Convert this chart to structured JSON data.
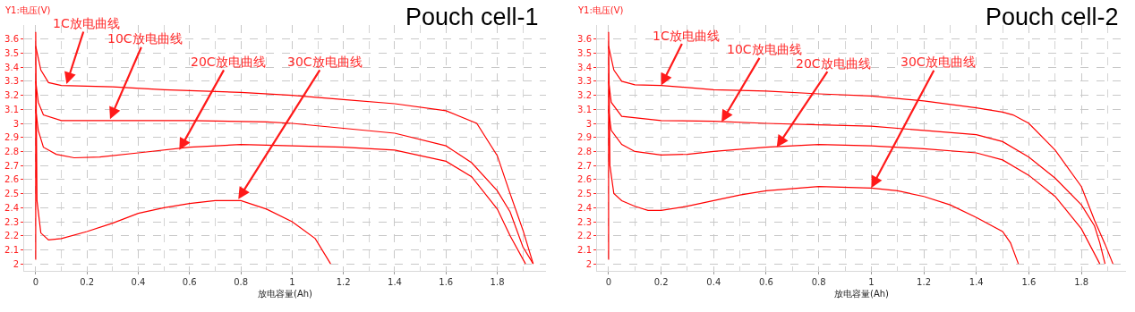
{
  "chart_data": [
    {
      "type": "line",
      "title": "Pouch cell-1",
      "xlabel": "放电容量(Ah)",
      "ylabel": "Y1:电压(V)",
      "xlim": [
        -0.045,
        1.99
      ],
      "ylim": [
        1.95,
        3.7
      ],
      "xticks": [
        0,
        0.2,
        0.4,
        0.6,
        0.8,
        1,
        1.2,
        1.4,
        1.6,
        1.8
      ],
      "yticks": [
        2,
        2.1,
        2.2,
        2.3,
        2.4,
        2.5,
        2.6,
        2.7,
        2.8,
        2.9,
        3,
        3.1,
        3.2,
        3.3,
        3.4,
        3.5,
        3.6
      ],
      "grid": true,
      "line_style": "solid",
      "marker": "none",
      "series": [
        {
          "color": "#ff0000",
          "x": [
            0,
            0.02,
            0.05,
            0.1,
            0.3,
            0.5,
            0.8,
            1.0,
            1.2,
            1.4,
            1.6,
            1.72,
            1.8,
            1.85,
            1.9,
            1.94
          ],
          "values": [
            3.55,
            3.38,
            3.29,
            3.27,
            3.26,
            3.24,
            3.22,
            3.2,
            3.17,
            3.14,
            3.09,
            3.0,
            2.77,
            2.5,
            2.24,
            2.0
          ]
        },
        {
          "color": "#ff0000",
          "x": [
            0,
            0.01,
            0.03,
            0.1,
            0.3,
            0.6,
            0.9,
            1.0,
            1.4,
            1.6,
            1.7,
            1.8,
            1.85,
            1.9,
            1.94
          ],
          "values": [
            3.3,
            3.15,
            3.06,
            3.02,
            3.02,
            3.02,
            3.01,
            3.0,
            2.93,
            2.84,
            2.72,
            2.52,
            2.37,
            2.12,
            2.0
          ]
        },
        {
          "color": "#ff0000",
          "x": [
            0,
            0.01,
            0.03,
            0.08,
            0.15,
            0.25,
            0.4,
            0.6,
            0.8,
            1.0,
            1.2,
            1.4,
            1.6,
            1.7,
            1.8,
            1.85,
            1.91
          ],
          "values": [
            3.1,
            2.95,
            2.83,
            2.78,
            2.755,
            2.76,
            2.79,
            2.83,
            2.85,
            2.84,
            2.83,
            2.81,
            2.73,
            2.62,
            2.39,
            2.2,
            2.0
          ]
        },
        {
          "color": "#ff0000",
          "x": [
            0,
            0,
            0.005,
            0.02,
            0.05,
            0.1,
            0.2,
            0.3,
            0.4,
            0.5,
            0.6,
            0.7,
            0.8,
            0.9,
            1.0,
            1.09,
            1.15
          ],
          "values": [
            2.03,
            3.65,
            2.45,
            2.22,
            2.17,
            2.18,
            2.23,
            2.29,
            2.36,
            2.4,
            2.43,
            2.45,
            2.45,
            2.39,
            2.3,
            2.18,
            2.0
          ]
        }
      ],
      "annotations": [
        {
          "text": "1C放电曲线",
          "x": 0.12,
          "y": 3.28
        },
        {
          "text": "10C放电曲线",
          "x": 0.29,
          "y": 3.03
        },
        {
          "text": "20C放电曲线",
          "x": 0.56,
          "y": 2.81
        },
        {
          "text": "30C放电曲线",
          "x": 0.79,
          "y": 2.46
        }
      ]
    },
    {
      "type": "line",
      "title": "Pouch cell-2",
      "xlabel": "放电容量(Ah)",
      "ylabel": "Y1:电压(V)",
      "xlim": [
        -0.044,
        1.97
      ],
      "ylim": [
        1.95,
        3.7
      ],
      "xticks": [
        0,
        0.2,
        0.4,
        0.6,
        0.8,
        1,
        1.2,
        1.4,
        1.6,
        1.8
      ],
      "yticks": [
        2,
        2.1,
        2.2,
        2.3,
        2.4,
        2.5,
        2.6,
        2.7,
        2.8,
        2.9,
        3,
        3.1,
        3.2,
        3.3,
        3.4,
        3.5,
        3.6
      ],
      "grid": true,
      "line_style": "solid",
      "marker": "none",
      "series": [
        {
          "color": "#ff0000",
          "x": [
            0,
            0.02,
            0.05,
            0.1,
            0.2,
            0.4,
            0.6,
            0.8,
            1.0,
            1.2,
            1.4,
            1.5,
            1.54,
            1.6,
            1.7,
            1.8,
            1.85,
            1.89,
            1.92
          ],
          "values": [
            3.55,
            3.38,
            3.3,
            3.275,
            3.27,
            3.24,
            3.23,
            3.21,
            3.195,
            3.16,
            3.11,
            3.08,
            3.06,
            3.0,
            2.81,
            2.55,
            2.31,
            2.14,
            2.0
          ]
        },
        {
          "color": "#ff0000",
          "x": [
            0,
            0.01,
            0.05,
            0.2,
            0.4,
            0.6,
            0.8,
            1.0,
            1.2,
            1.4,
            1.5,
            1.6,
            1.7,
            1.8,
            1.85,
            1.87,
            1.89
          ],
          "values": [
            3.3,
            3.15,
            3.05,
            3.02,
            3.015,
            3.0,
            2.99,
            2.98,
            2.95,
            2.92,
            2.87,
            2.76,
            2.61,
            2.42,
            2.27,
            2.15,
            2.0
          ]
        },
        {
          "color": "#ff0000",
          "x": [
            0,
            0.01,
            0.05,
            0.1,
            0.2,
            0.3,
            0.4,
            0.6,
            0.8,
            1.0,
            1.2,
            1.4,
            1.5,
            1.6,
            1.7,
            1.8,
            1.87
          ],
          "values": [
            3.1,
            2.95,
            2.85,
            2.8,
            2.775,
            2.78,
            2.8,
            2.83,
            2.85,
            2.84,
            2.82,
            2.79,
            2.74,
            2.63,
            2.48,
            2.25,
            2.0
          ]
        },
        {
          "color": "#ff0000",
          "x": [
            0,
            0,
            0.005,
            0.02,
            0.05,
            0.1,
            0.15,
            0.2,
            0.3,
            0.4,
            0.5,
            0.6,
            0.8,
            1.0,
            1.1,
            1.2,
            1.3,
            1.4,
            1.5,
            1.53,
            1.56
          ],
          "values": [
            2.03,
            3.65,
            2.7,
            2.5,
            2.45,
            2.41,
            2.38,
            2.38,
            2.41,
            2.45,
            2.49,
            2.52,
            2.55,
            2.54,
            2.52,
            2.48,
            2.42,
            2.33,
            2.23,
            2.15,
            2.0
          ]
        }
      ],
      "annotations": [
        {
          "text": "1C放电曲线",
          "x": 0.2,
          "y": 3.27
        },
        {
          "text": "10C放电曲线",
          "x": 0.43,
          "y": 3.01
        },
        {
          "text": "20C放电曲线",
          "x": 0.64,
          "y": 2.83
        },
        {
          "text": "30C放电曲线",
          "x": 1.0,
          "y": 2.54
        }
      ]
    }
  ]
}
